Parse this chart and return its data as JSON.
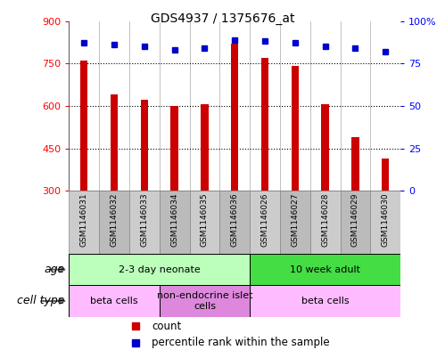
{
  "title": "GDS4937 / 1375676_at",
  "samples": [
    "GSM1146031",
    "GSM1146032",
    "GSM1146033",
    "GSM1146034",
    "GSM1146035",
    "GSM1146036",
    "GSM1146026",
    "GSM1146027",
    "GSM1146028",
    "GSM1146029",
    "GSM1146030"
  ],
  "counts": [
    760,
    640,
    622,
    600,
    607,
    820,
    770,
    742,
    607,
    490,
    415
  ],
  "percentiles": [
    87,
    86,
    85,
    83,
    84,
    89,
    88,
    87,
    85,
    84,
    82
  ],
  "ylim_left": [
    300,
    900
  ],
  "ylim_right": [
    0,
    100
  ],
  "yticks_left": [
    300,
    450,
    600,
    750,
    900
  ],
  "yticks_right": [
    0,
    25,
    50,
    75,
    100
  ],
  "bar_color": "#cc0000",
  "dot_color": "#0000cc",
  "bg_color": "#ffffff",
  "plot_bg": "#ffffff",
  "age_groups": [
    {
      "label": "2-3 day neonate",
      "start": 0,
      "end": 6,
      "color": "#bbffbb"
    },
    {
      "label": "10 week adult",
      "start": 6,
      "end": 11,
      "color": "#44dd44"
    }
  ],
  "cell_groups": [
    {
      "label": "beta cells",
      "start": 0,
      "end": 3,
      "color": "#ffbbff"
    },
    {
      "label": "non-endocrine islet\ncells",
      "start": 3,
      "end": 6,
      "color": "#dd88dd"
    },
    {
      "label": "beta cells",
      "start": 6,
      "end": 11,
      "color": "#ffbbff"
    }
  ]
}
